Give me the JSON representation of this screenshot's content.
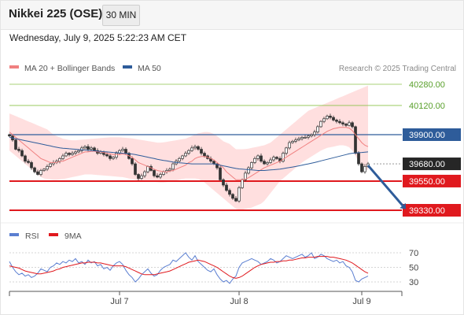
{
  "header": {
    "title": "Nikkei 225 (OSE)",
    "timeframe": "30 MIN"
  },
  "datetime": "Wednesday, July 9, 2025 5:22:23 AM CET",
  "colors": {
    "bollinger_fill": "#ffd9d9",
    "ma20": "#f08080",
    "ma50": "#2e5c9a",
    "resistance": "#8bc34a",
    "support": "#e0191e",
    "pivot": "#2e5c9a",
    "rsi": "#5b7fd1",
    "rsi_ma": "#e0191e",
    "arrow": "#2e5c9a"
  },
  "chart_data": [
    {
      "type": "candlestick",
      "legend": [
        {
          "name": "MA 20 + Bollinger Bands",
          "color": "#f08080"
        },
        {
          "name": "MA 50",
          "color": "#2e5c9a"
        }
      ],
      "watermark": "Research © 2025 Trading Central",
      "ylim": [
        39240,
        40340
      ],
      "x_ticks": [
        {
          "label": "Jul 7",
          "index": 35
        },
        {
          "label": "Jul 8",
          "index": 73
        },
        {
          "label": "Jul 9",
          "index": 112
        }
      ],
      "levels": [
        {
          "label": "40280.00",
          "value": 40280,
          "role": "resistance"
        },
        {
          "label": "40120.00",
          "value": 40120,
          "role": "resistance"
        },
        {
          "label": "39900.00",
          "value": 39900,
          "role": "pivot"
        },
        {
          "label": "39680.00",
          "value": 39680,
          "role": "last"
        },
        {
          "label": "39550.00",
          "value": 39550,
          "role": "support"
        },
        {
          "label": "39330.00",
          "value": 39330,
          "role": "support"
        }
      ],
      "closes": [
        39890,
        39860,
        39790,
        39780,
        39740,
        39700,
        39690,
        39650,
        39620,
        39600,
        39630,
        39640,
        39660,
        39680,
        39690,
        39700,
        39720,
        39740,
        39760,
        39750,
        39760,
        39770,
        39780,
        39800,
        39810,
        39790,
        39800,
        39780,
        39760,
        39770,
        39750,
        39740,
        39720,
        39730,
        39760,
        39780,
        39790,
        39760,
        39720,
        39680,
        39600,
        39570,
        39590,
        39620,
        39660,
        39630,
        39590,
        39580,
        39600,
        39620,
        39630,
        39640,
        39680,
        39700,
        39720,
        39740,
        39760,
        39780,
        39800,
        39810,
        39790,
        39760,
        39740,
        39720,
        39700,
        39680,
        39650,
        39560,
        39520,
        39480,
        39450,
        39420,
        39400,
        39500,
        39560,
        39610,
        39650,
        39690,
        39720,
        39740,
        39700,
        39680,
        39690,
        39710,
        39730,
        39720,
        39700,
        39760,
        39800,
        39840,
        39850,
        39860,
        39870,
        39880,
        39880,
        39890,
        39900,
        39920,
        39960,
        40000,
        40020,
        40040,
        40030,
        40010,
        40000,
        39990,
        39980,
        39970,
        39990,
        39960,
        39760,
        39680,
        39620,
        39660,
        39680
      ],
      "ma20": [
        39920,
        39900,
        39880,
        39860,
        39840,
        39820,
        39800,
        39780,
        39760,
        39740,
        39720,
        39710,
        39700,
        39690,
        39690,
        39690,
        39700,
        39700,
        39710,
        39720,
        39730,
        39740,
        39750,
        39760,
        39770,
        39770,
        39775,
        39775,
        39770,
        39770,
        39765,
        39760,
        39755,
        39750,
        39750,
        39750,
        39755,
        39750,
        39740,
        39730,
        39710,
        39690,
        39680,
        39670,
        39660,
        39650,
        39640,
        39630,
        39625,
        39620,
        39620,
        39625,
        39630,
        39640,
        39650,
        39660,
        39670,
        39690,
        39700,
        39720,
        39730,
        39735,
        39735,
        39730,
        39720,
        39710,
        39690,
        39670,
        39650,
        39620,
        39600,
        39580,
        39560,
        39560,
        39560,
        39565,
        39575,
        39590,
        39605,
        39620,
        39635,
        39650,
        39660,
        39670,
        39680,
        39690,
        39700,
        39715,
        39730,
        39745,
        39760,
        39775,
        39790,
        39805,
        39820,
        39835,
        39850,
        39865,
        39880,
        39895,
        39910,
        39925,
        39935,
        39945,
        39950,
        39955,
        39955,
        39955,
        39950,
        39930,
        39900,
        39870,
        39840,
        39820,
        39810
      ],
      "bb_upper": [
        40060,
        40050,
        40040,
        40030,
        40020,
        40010,
        40000,
        39990,
        39980,
        39970,
        39960,
        39950,
        39940,
        39920,
        39900,
        39890,
        39880,
        39870,
        39865,
        39860,
        39858,
        39858,
        39860,
        39862,
        39864,
        39866,
        39868,
        39870,
        39872,
        39874,
        39876,
        39878,
        39880,
        39880,
        39880,
        39880,
        39878,
        39876,
        39874,
        39872,
        39868,
        39864,
        39860,
        39856,
        39852,
        39848,
        39844,
        39840,
        39840,
        39842,
        39846,
        39850,
        39854,
        39858,
        39862,
        39866,
        39870,
        39880,
        39890,
        39900,
        39910,
        39915,
        39920,
        39920,
        39915,
        39905,
        39890,
        39870,
        39850,
        39840,
        39830,
        39810,
        39790,
        39790,
        39790,
        39792,
        39795,
        39800,
        39805,
        39810,
        39815,
        39820,
        39830,
        39840,
        39860,
        39880,
        39900,
        39920,
        39940,
        39960,
        39980,
        40000,
        40020,
        40040,
        40060,
        40080,
        40090,
        40100,
        40110,
        40120,
        40130,
        40140,
        40150,
        40160,
        40170,
        40180,
        40190,
        40200,
        40210,
        40220,
        40230,
        40240,
        40250,
        40260,
        40270
      ],
      "bb_lower": [
        39780,
        39760,
        39740,
        39720,
        39700,
        39680,
        39660,
        39640,
        39620,
        39600,
        39580,
        39570,
        39565,
        39562,
        39560,
        39560,
        39562,
        39565,
        39570,
        39575,
        39580,
        39585,
        39590,
        39595,
        39600,
        39600,
        39600,
        39598,
        39596,
        39594,
        39592,
        39590,
        39588,
        39586,
        39584,
        39582,
        39580,
        39575,
        39570,
        39565,
        39560,
        39555,
        39552,
        39550,
        39548,
        39546,
        39544,
        39542,
        39540,
        39540,
        39542,
        39545,
        39550,
        39555,
        39560,
        39565,
        39570,
        39570,
        39570,
        39570,
        39565,
        39555,
        39540,
        39520,
        39500,
        39480,
        39460,
        39440,
        39420,
        39400,
        39380,
        39360,
        39340,
        39335,
        39335,
        39340,
        39345,
        39350,
        39360,
        39370,
        39380,
        39400,
        39430,
        39460,
        39490,
        39520,
        39550,
        39570,
        39590,
        39610,
        39630,
        39650,
        39670,
        39690,
        39705,
        39720,
        39735,
        39750,
        39765,
        39780,
        39790,
        39800,
        39805,
        39810,
        39815,
        39820,
        39820,
        39815,
        39805,
        39780,
        39740,
        39700,
        39660,
        39640,
        39630
      ],
      "ma50": [
        39880,
        39875,
        39870,
        39865,
        39860,
        39855,
        39850,
        39845,
        39840,
        39835,
        39830,
        39825,
        39820,
        39815,
        39810,
        39805,
        39800,
        39798,
        39796,
        39794,
        39792,
        39790,
        39788,
        39786,
        39784,
        39782,
        39780,
        39778,
        39776,
        39774,
        39772,
        39770,
        39768,
        39766,
        39764,
        39762,
        39760,
        39758,
        39756,
        39754,
        39750,
        39745,
        39740,
        39735,
        39730,
        39725,
        39720,
        39715,
        39710,
        39706,
        39702,
        39698,
        39694,
        39690,
        39688,
        39686,
        39684,
        39682,
        39680,
        39680,
        39680,
        39680,
        39680,
        39680,
        39680,
        39680,
        39675,
        39670,
        39665,
        39660,
        39655,
        39650,
        39645,
        39642,
        39640,
        39638,
        39636,
        39634,
        39632,
        39630,
        39630,
        39630,
        39632,
        39634,
        39636,
        39638,
        39640,
        39644,
        39648,
        39652,
        39656,
        39660,
        39665,
        39670,
        39675,
        39680,
        39685,
        39690,
        39696,
        39702,
        39708,
        39714,
        39720,
        39726,
        39732,
        39738,
        39744,
        39750,
        39756,
        39760,
        39762,
        39764,
        39766,
        39768,
        39770
      ],
      "forecast_arrow": {
        "from_index": 114,
        "from_value": 39680,
        "to_index": 126,
        "to_value": 39330
      }
    },
    {
      "type": "line",
      "legend": [
        {
          "name": "RSI",
          "color": "#5b7fd1"
        },
        {
          "name": "9MA",
          "color": "#e0191e"
        }
      ],
      "ylim": [
        20,
        80
      ],
      "y_ticks": [
        30,
        50,
        70
      ],
      "rsi": [
        58,
        50,
        44,
        40,
        42,
        38,
        40,
        36,
        38,
        42,
        48,
        46,
        44,
        50,
        52,
        56,
        54,
        58,
        56,
        60,
        58,
        62,
        56,
        58,
        54,
        60,
        56,
        58,
        52,
        54,
        48,
        50,
        46,
        52,
        56,
        58,
        54,
        46,
        40,
        36,
        30,
        34,
        40,
        44,
        48,
        42,
        38,
        40,
        46,
        50,
        52,
        54,
        60,
        58,
        62,
        66,
        70,
        64,
        60,
        66,
        58,
        54,
        50,
        46,
        44,
        48,
        40,
        34,
        30,
        32,
        28,
        34,
        38,
        50,
        56,
        58,
        60,
        62,
        60,
        58,
        54,
        56,
        58,
        62,
        60,
        56,
        58,
        62,
        66,
        64,
        62,
        64,
        66,
        68,
        64,
        66,
        70,
        62,
        64,
        68,
        66,
        62,
        60,
        58,
        60,
        56,
        58,
        52,
        50,
        44,
        32,
        30,
        34,
        36,
        38
      ],
      "rsi_ma": [
        52,
        51,
        50,
        49,
        47,
        45,
        44,
        43,
        42,
        41,
        41,
        42,
        43,
        44,
        45,
        47,
        48,
        50,
        51,
        52,
        53,
        54,
        55,
        56,
        56,
        57,
        57,
        57,
        56,
        56,
        55,
        54,
        53,
        52,
        52,
        52,
        52,
        51,
        49,
        47,
        45,
        43,
        41,
        40,
        40,
        40,
        40,
        41,
        42,
        43,
        44,
        45,
        47,
        49,
        51,
        53,
        55,
        57,
        58,
        59,
        60,
        59,
        58,
        56,
        54,
        52,
        50,
        47,
        44,
        41,
        38,
        36,
        35,
        36,
        38,
        41,
        44,
        47,
        50,
        52,
        54,
        55,
        56,
        57,
        57,
        58,
        58,
        59,
        59,
        60,
        60,
        61,
        62,
        63,
        63,
        64,
        64,
        64,
        65,
        65,
        65,
        65,
        64,
        64,
        63,
        62,
        61,
        60,
        58,
        56,
        53,
        50,
        47,
        44,
        42
      ]
    }
  ]
}
